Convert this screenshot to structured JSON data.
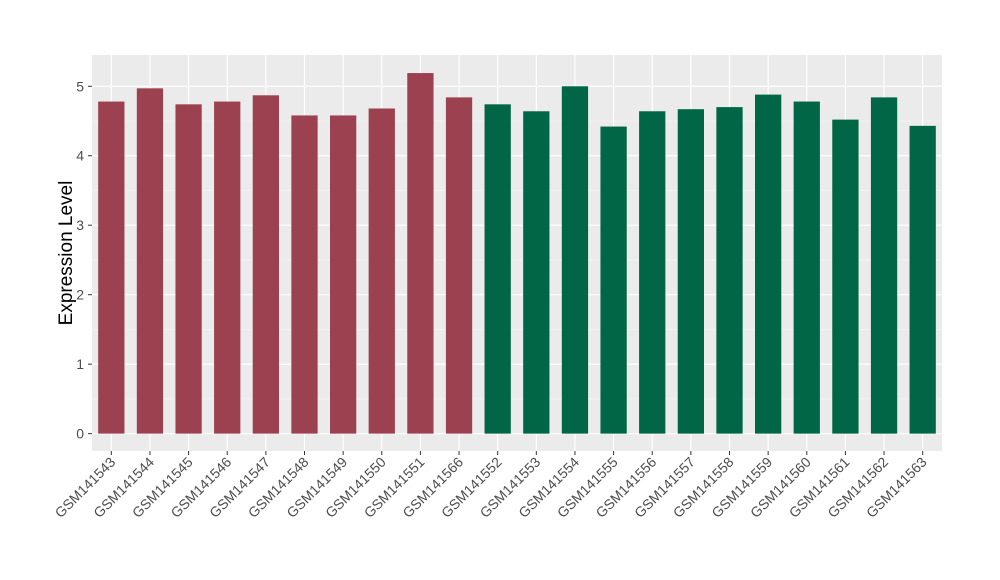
{
  "chart_data": {
    "type": "bar",
    "title": "",
    "xlabel": "",
    "ylabel": "Expression Level",
    "ylim": [
      -0.25,
      5.45
    ],
    "yticks": [
      0,
      1,
      2,
      3,
      4,
      5
    ],
    "grid": true,
    "categories": [
      "GSM141543",
      "GSM141544",
      "GSM141545",
      "GSM141546",
      "GSM141547",
      "GSM141548",
      "GSM141549",
      "GSM141550",
      "GSM141551",
      "GSM141566",
      "GSM141552",
      "GSM141553",
      "GSM141554",
      "GSM141555",
      "GSM141556",
      "GSM141557",
      "GSM141558",
      "GSM141559",
      "GSM141560",
      "GSM141561",
      "GSM141562",
      "GSM141563"
    ],
    "values": [
      4.78,
      4.97,
      4.74,
      4.78,
      4.87,
      4.58,
      4.58,
      4.68,
      5.19,
      4.84,
      4.74,
      4.64,
      5.0,
      4.42,
      4.64,
      4.67,
      4.7,
      4.88,
      4.78,
      4.52,
      4.84,
      4.43
    ],
    "groups": [
      "a",
      "a",
      "a",
      "a",
      "a",
      "a",
      "a",
      "a",
      "a",
      "a",
      "b",
      "b",
      "b",
      "b",
      "b",
      "b",
      "b",
      "b",
      "b",
      "b",
      "b",
      "b"
    ],
    "colors": {
      "a": "#9B4150",
      "b": "#006645"
    }
  }
}
